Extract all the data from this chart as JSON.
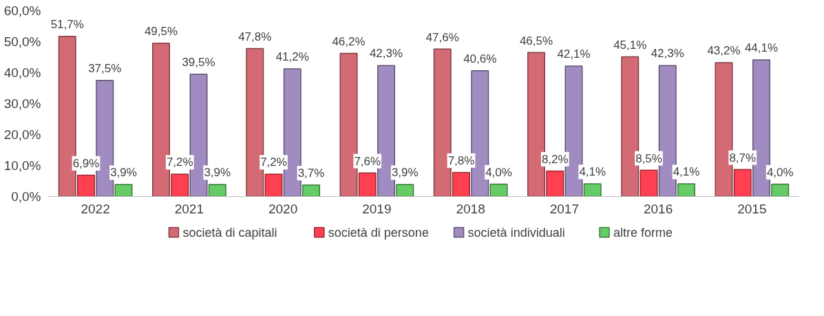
{
  "chart_data": {
    "type": "bar",
    "categories": [
      "2022",
      "2021",
      "2020",
      "2019",
      "2018",
      "2017",
      "2016",
      "2015"
    ],
    "series": [
      {
        "name": "società di capitali",
        "color": "#d46a74",
        "values": [
          51.7,
          49.5,
          47.8,
          46.2,
          47.6,
          46.5,
          45.1,
          43.2
        ],
        "value_labels": [
          "51,7%",
          "49,5%",
          "47,8%",
          "46,2%",
          "47,6%",
          "46,5%",
          "45,1%",
          "43,2%"
        ]
      },
      {
        "name": "società di persone",
        "color": "#ff4050",
        "values": [
          6.9,
          7.2,
          7.2,
          7.6,
          7.8,
          8.2,
          8.5,
          8.7
        ],
        "value_labels": [
          "6,9%",
          "7,2%",
          "7,2%",
          "7,6%",
          "7,8%",
          "8,2%",
          "8,5%",
          "8,7%"
        ]
      },
      {
        "name": "società individuali",
        "color": "#a08cc0",
        "values": [
          37.5,
          39.5,
          41.2,
          42.3,
          40.6,
          42.1,
          42.3,
          44.1
        ],
        "value_labels": [
          "37,5%",
          "39,5%",
          "41,2%",
          "42,3%",
          "40,6%",
          "42,1%",
          "42,3%",
          "44,1%"
        ]
      },
      {
        "name": "altre forme",
        "color": "#66cc66",
        "values": [
          3.9,
          3.9,
          3.7,
          3.9,
          4.0,
          4.1,
          4.1,
          4.0
        ],
        "value_labels": [
          "3,9%",
          "3,9%",
          "3,7%",
          "3,9%",
          "4,0%",
          "4,1%",
          "4,1%",
          "4,0%"
        ]
      }
    ],
    "ylim": [
      0,
      60
    ],
    "yticks": [
      {
        "value": 0,
        "label": "0,0%"
      },
      {
        "value": 10,
        "label": "10,0%"
      },
      {
        "value": 20,
        "label": "20,0%"
      },
      {
        "value": 30,
        "label": "30,0%"
      },
      {
        "value": 40,
        "label": "40,0%"
      },
      {
        "value": 50,
        "label": "50,0%"
      },
      {
        "value": 60,
        "label": "60,0%"
      }
    ],
    "grid": false,
    "legend": "bottom"
  }
}
